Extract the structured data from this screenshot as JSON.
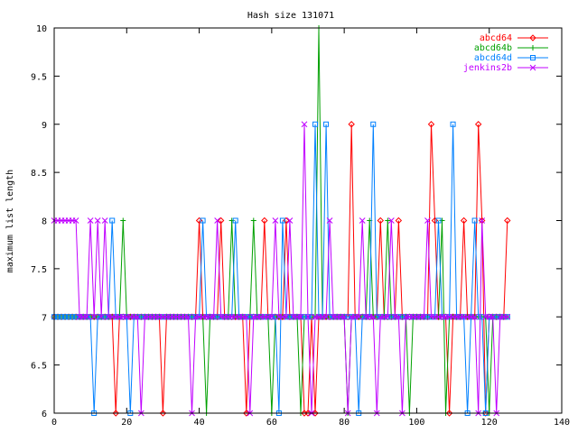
{
  "chart_data": {
    "type": "line",
    "title": "Hash size 131071",
    "xlabel": "",
    "ylabel": "maximum list length",
    "xlim": [
      0,
      140
    ],
    "ylim": [
      6,
      10
    ],
    "xticks": [
      "0",
      "20",
      "40",
      "60",
      "80",
      "100",
      "120",
      "140"
    ],
    "yticks": [
      "6",
      "6.5",
      "7",
      "7.5",
      "8",
      "8.5",
      "9",
      "9.5",
      "10"
    ],
    "grid": false,
    "legend_position": "top-right",
    "series": [
      {
        "name": "abcd64",
        "color": "#ff0000",
        "marker": "diamond",
        "x": [
          0,
          1,
          2,
          3,
          4,
          5,
          6,
          7,
          8,
          9,
          10,
          11,
          12,
          13,
          14,
          15,
          16,
          17,
          18,
          19,
          20,
          21,
          22,
          23,
          24,
          25,
          26,
          27,
          28,
          29,
          30,
          31,
          32,
          33,
          34,
          35,
          36,
          37,
          38,
          39,
          40,
          41,
          42,
          43,
          44,
          45,
          46,
          47,
          48,
          49,
          50,
          51,
          52,
          53,
          54,
          55,
          56,
          57,
          58,
          59,
          60,
          61,
          62,
          63,
          64,
          65,
          66,
          67,
          68,
          69,
          70,
          71,
          72,
          73,
          74,
          75,
          76,
          77,
          78,
          79,
          80,
          81,
          82,
          83,
          84,
          85,
          86,
          87,
          88,
          89,
          90,
          91,
          92,
          93,
          94,
          95,
          96,
          97,
          98,
          99,
          100,
          101,
          102,
          103,
          104,
          105,
          106,
          107,
          108,
          109,
          110,
          111,
          112,
          113,
          114,
          115,
          116,
          117,
          118,
          119,
          120,
          121,
          122,
          123,
          124,
          125
        ],
        "y": [
          7,
          7,
          7,
          7,
          7,
          7,
          7,
          7,
          7,
          7,
          7,
          7,
          7,
          7,
          7,
          7,
          7,
          6,
          7,
          7,
          7,
          7,
          7,
          7,
          7,
          7,
          7,
          7,
          7,
          7,
          6,
          7,
          7,
          7,
          7,
          7,
          7,
          7,
          7,
          7,
          8,
          7,
          7,
          7,
          7,
          7,
          8,
          7,
          7,
          7,
          7,
          7,
          7,
          6,
          7,
          7,
          7,
          7,
          8,
          7,
          7,
          7,
          7,
          7,
          8,
          7,
          7,
          7,
          7,
          6,
          6,
          7,
          6,
          7,
          7,
          7,
          7,
          7,
          7,
          7,
          7,
          7,
          9,
          7,
          7,
          7,
          7,
          7,
          7,
          7,
          8,
          7,
          7,
          7,
          7,
          8,
          7,
          7,
          7,
          7,
          7,
          7,
          7,
          7,
          9,
          8,
          7,
          7,
          7,
          6,
          7,
          7,
          7,
          8,
          7,
          7,
          7,
          9,
          8,
          6,
          7,
          7,
          7,
          7,
          7,
          8
        ]
      },
      {
        "name": "abcd64b",
        "color": "#00a000",
        "marker": "plus",
        "x": [
          0,
          1,
          2,
          3,
          4,
          5,
          6,
          7,
          8,
          9,
          10,
          11,
          12,
          13,
          14,
          15,
          16,
          17,
          18,
          19,
          20,
          21,
          22,
          23,
          24,
          25,
          26,
          27,
          28,
          29,
          30,
          31,
          32,
          33,
          34,
          35,
          36,
          37,
          38,
          39,
          40,
          41,
          42,
          43,
          44,
          45,
          46,
          47,
          48,
          49,
          50,
          51,
          52,
          53,
          54,
          55,
          56,
          57,
          58,
          59,
          60,
          61,
          62,
          63,
          64,
          65,
          66,
          67,
          68,
          69,
          70,
          71,
          72,
          73,
          74,
          75,
          76,
          77,
          78,
          79,
          80,
          81,
          82,
          83,
          84,
          85,
          86,
          87,
          88,
          89,
          90,
          91,
          92,
          93,
          94,
          95,
          96,
          97,
          98,
          99,
          100,
          101,
          102,
          103,
          104,
          105,
          106,
          107,
          108,
          109,
          110,
          111,
          112,
          113,
          114,
          115,
          116,
          117,
          118,
          119,
          120,
          121,
          122,
          123,
          124,
          125
        ],
        "y": [
          7,
          7,
          7,
          7,
          7,
          7,
          7,
          7,
          7,
          7,
          7,
          7,
          7,
          7,
          7,
          7,
          7,
          7,
          7,
          8,
          7,
          7,
          7,
          7,
          7,
          7,
          7,
          7,
          7,
          7,
          7,
          7,
          7,
          7,
          7,
          7,
          7,
          7,
          7,
          7,
          7,
          7,
          6,
          7,
          7,
          7,
          7,
          7,
          7,
          8,
          7,
          7,
          7,
          7,
          7,
          8,
          7,
          7,
          7,
          7,
          6,
          7,
          7,
          7,
          7,
          7,
          7,
          7,
          6,
          7,
          7,
          7,
          7,
          10,
          7,
          7,
          7,
          7,
          7,
          7,
          7,
          6,
          7,
          7,
          7,
          7,
          7,
          8,
          7,
          7,
          7,
          7,
          8,
          7,
          7,
          7,
          7,
          7,
          6,
          7,
          7,
          7,
          7,
          7,
          7,
          7,
          7,
          8,
          6,
          7,
          7,
          7,
          7,
          7,
          7,
          7,
          7,
          7,
          7,
          7,
          6,
          7,
          7,
          7,
          7,
          7
        ]
      },
      {
        "name": "abcd64d",
        "color": "#0080ff",
        "marker": "square",
        "x": [
          0,
          1,
          2,
          3,
          4,
          5,
          6,
          7,
          8,
          9,
          10,
          11,
          12,
          13,
          14,
          15,
          16,
          17,
          18,
          19,
          20,
          21,
          22,
          23,
          24,
          25,
          26,
          27,
          28,
          29,
          30,
          31,
          32,
          33,
          34,
          35,
          36,
          37,
          38,
          39,
          40,
          41,
          42,
          43,
          44,
          45,
          46,
          47,
          48,
          49,
          50,
          51,
          52,
          53,
          54,
          55,
          56,
          57,
          58,
          59,
          60,
          61,
          62,
          63,
          64,
          65,
          66,
          67,
          68,
          69,
          70,
          71,
          72,
          73,
          74,
          75,
          76,
          77,
          78,
          79,
          80,
          81,
          82,
          83,
          84,
          85,
          86,
          87,
          88,
          89,
          90,
          91,
          92,
          93,
          94,
          95,
          96,
          97,
          98,
          99,
          100,
          101,
          102,
          103,
          104,
          105,
          106,
          107,
          108,
          109,
          110,
          111,
          112,
          113,
          114,
          115,
          116,
          117,
          118,
          119,
          120,
          121,
          122,
          123,
          124,
          125
        ],
        "y": [
          7,
          7,
          7,
          7,
          7,
          7,
          7,
          7,
          7,
          7,
          7,
          6,
          7,
          7,
          7,
          7,
          8,
          7,
          7,
          7,
          7,
          6,
          7,
          7,
          7,
          7,
          7,
          7,
          7,
          7,
          7,
          7,
          7,
          7,
          7,
          7,
          7,
          7,
          7,
          7,
          7,
          8,
          7,
          7,
          7,
          7,
          7,
          7,
          7,
          7,
          8,
          7,
          7,
          7,
          7,
          7,
          7,
          7,
          7,
          7,
          7,
          7,
          6,
          8,
          7,
          7,
          7,
          7,
          7,
          7,
          7,
          7,
          9,
          7,
          7,
          9,
          7,
          7,
          7,
          7,
          7,
          7,
          7,
          7,
          6,
          7,
          7,
          7,
          9,
          7,
          7,
          7,
          7,
          7,
          7,
          7,
          7,
          7,
          7,
          7,
          7,
          7,
          7,
          7,
          7,
          7,
          8,
          7,
          7,
          7,
          9,
          7,
          7,
          7,
          6,
          7,
          8,
          7,
          7,
          6,
          7,
          7,
          7,
          7,
          7,
          7
        ]
      },
      {
        "name": "jenkins2b",
        "color": "#c000ff",
        "marker": "x",
        "x": [
          0,
          1,
          2,
          3,
          4,
          5,
          6,
          7,
          8,
          9,
          10,
          11,
          12,
          13,
          14,
          15,
          16,
          17,
          18,
          19,
          20,
          21,
          22,
          23,
          24,
          25,
          26,
          27,
          28,
          29,
          30,
          31,
          32,
          33,
          34,
          35,
          36,
          37,
          38,
          39,
          40,
          41,
          42,
          43,
          44,
          45,
          46,
          47,
          48,
          49,
          50,
          51,
          52,
          53,
          54,
          55,
          56,
          57,
          58,
          59,
          60,
          61,
          62,
          63,
          64,
          65,
          66,
          67,
          68,
          69,
          70,
          71,
          72,
          73,
          74,
          75,
          76,
          77,
          78,
          79,
          80,
          81,
          82,
          83,
          84,
          85,
          86,
          87,
          88,
          89,
          90,
          91,
          92,
          93,
          94,
          95,
          96,
          97,
          98,
          99,
          100,
          101,
          102,
          103,
          104,
          105,
          106,
          107,
          108,
          109,
          110,
          111,
          112,
          113,
          114,
          115,
          116,
          117,
          118,
          119,
          120,
          121,
          122,
          123,
          124,
          125
        ],
        "y": [
          8,
          8,
          8,
          8,
          8,
          8,
          8,
          7,
          7,
          7,
          8,
          7,
          8,
          7,
          8,
          7,
          7,
          7,
          7,
          7,
          7,
          7,
          7,
          7,
          6,
          7,
          7,
          7,
          7,
          7,
          7,
          7,
          7,
          7,
          7,
          7,
          7,
          7,
          6,
          7,
          7,
          7,
          7,
          7,
          7,
          8,
          7,
          7,
          7,
          7,
          7,
          7,
          7,
          7,
          6,
          7,
          7,
          7,
          7,
          7,
          7,
          8,
          7,
          7,
          7,
          8,
          7,
          7,
          7,
          9,
          7,
          6,
          7,
          7,
          7,
          7,
          8,
          7,
          7,
          7,
          7,
          6,
          7,
          7,
          7,
          8,
          7,
          7,
          7,
          6,
          7,
          7,
          7,
          8,
          7,
          7,
          6,
          7,
          7,
          7,
          7,
          7,
          7,
          8,
          7,
          7,
          7,
          7,
          7,
          7,
          7,
          7,
          7,
          7,
          7,
          7,
          7,
          6,
          8,
          7,
          7,
          7,
          6,
          7,
          7,
          7
        ]
      }
    ]
  }
}
